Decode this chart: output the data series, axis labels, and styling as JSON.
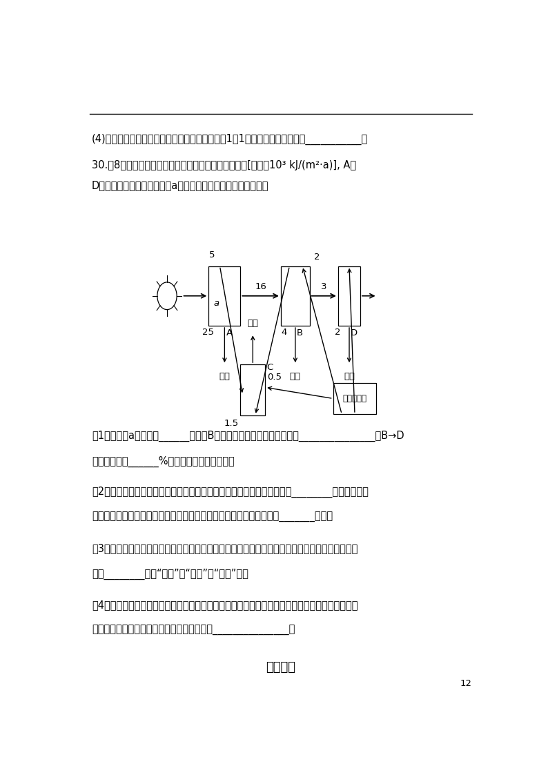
{
  "page_num": "12",
  "bg_color": "#ffffff",
  "text_color": "#000000",
  "font_size_main": 10.5,
  "font_size_small": 9.5,
  "q4_text": "(4)三次实验所得的子代，雌株与雄株的比例总是1：1，出现该结果的原因是___________。",
  "q30_text1": "30.（8分）如图表示某生态系统中能量流动的大致过程[单位为10³ kJ/(m²·a)], A～",
  "q30_text2": "D为生态系统中的组成成分，a代表相应能量。请回答下列问题：",
  "q1_text": "（1）图中的a表示的是______，图中B同化的能量除图示去向外，还有_______________，B→D",
  "q1_text2": "的传递效率为______%（保留小数点后一位）。",
  "q2_text": "（2）在该地区山坡的阳面和阴面生长植物的种类有差异，这体现了群落的________结构。此地区",
  "q2_text2": "的植被还具有调节当地气候、涵养水源的作用，这体现了生物多样性的_______价值。",
  "q3_text": "（3）采用标志重捕法调查该地区的某濮危动物时，被标记个体在调查期间迁出了调查区域，会造成",
  "q3_text2": "结果________（填“偏大”、“偏小”或“不变”）。",
  "q4b_text": "（4）研究生态系统能量流动的实践意义：一是可以科学规划、设计人工生态系统，使能量得到最有",
  "q4b_text2": "效的利用；二是合理地调整能量流动关系，使_______________。",
  "ref_text": "参考答案"
}
